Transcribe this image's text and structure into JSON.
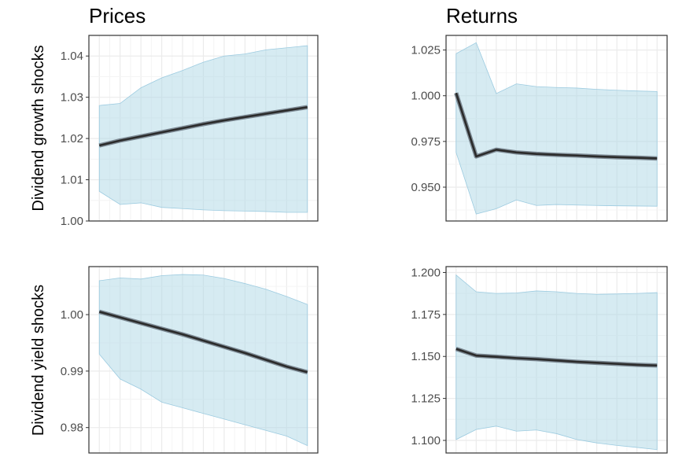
{
  "column_titles": [
    "Prices",
    "Returns"
  ],
  "row_titles": [
    "Dividend growth shocks",
    "Dividend yield shocks"
  ],
  "colors": {
    "band_fill": "#add8e6",
    "band_stroke": "#9ccbe0",
    "line": "#2b2b2b",
    "line_halo": "#7d8a94",
    "panel_border": "#333333",
    "grid_major": "#ebebeb",
    "grid_minor": "#f4f4f4",
    "tick_text": "#4d4d4d"
  },
  "chart_data": [
    {
      "type": "line",
      "panel": "prices-dividend-growth-shocks",
      "x": [
        1,
        2,
        3,
        4,
        5,
        6,
        7,
        8,
        9,
        10,
        11
      ],
      "y": [
        1.0183,
        1.0195,
        1.0205,
        1.0215,
        1.0225,
        1.0235,
        1.0244,
        1.0252,
        1.026,
        1.0268,
        1.0276
      ],
      "lower": [
        1.0072,
        1.004,
        1.0044,
        1.0033,
        1.003,
        1.0027,
        1.0025,
        1.0024,
        1.0023,
        1.0021,
        1.0021
      ],
      "upper": [
        1.028,
        1.0285,
        1.0323,
        1.0347,
        1.0365,
        1.0385,
        1.04,
        1.0405,
        1.0415,
        1.042,
        1.0425
      ],
      "ylim": [
        1.0,
        1.045
      ],
      "yticks": [
        1.0,
        1.01,
        1.02,
        1.03,
        1.04
      ],
      "ytick_labels": [
        "1.00",
        "1.01",
        "1.02",
        "1.03",
        "1.04"
      ]
    },
    {
      "type": "line",
      "panel": "returns-dividend-growth-shocks",
      "x": [
        1,
        2,
        3,
        4,
        5,
        6,
        7,
        8,
        9,
        10,
        11
      ],
      "y": [
        1.0015,
        0.9668,
        0.9705,
        0.969,
        0.9682,
        0.9677,
        0.9673,
        0.9668,
        0.9664,
        0.9661,
        0.9657
      ],
      "lower": [
        0.969,
        0.9353,
        0.9382,
        0.943,
        0.94,
        0.9405,
        0.9402,
        0.94,
        0.9398,
        0.9397,
        0.9396
      ],
      "upper": [
        1.023,
        1.029,
        1.0012,
        1.0065,
        1.005,
        1.0045,
        1.0042,
        1.0035,
        1.003,
        1.0026,
        1.0023
      ],
      "ylim": [
        0.9315,
        1.033
      ],
      "yticks": [
        0.95,
        0.975,
        1.0,
        1.025
      ],
      "ytick_labels": [
        "0.950",
        "0.975",
        "1.000",
        "1.025"
      ]
    },
    {
      "type": "line",
      "panel": "prices-dividend-yield-shocks",
      "x": [
        1,
        2,
        3,
        4,
        5,
        6,
        7,
        8,
        9,
        10,
        11
      ],
      "y": [
        1.0005,
        0.9995,
        0.9985,
        0.9975,
        0.9965,
        0.9954,
        0.9943,
        0.9932,
        0.992,
        0.9908,
        0.9898
      ],
      "lower": [
        0.993,
        0.9886,
        0.9868,
        0.9845,
        0.9835,
        0.9825,
        0.9815,
        0.9805,
        0.9795,
        0.9785,
        0.9768
      ],
      "upper": [
        1.006,
        1.0065,
        1.0063,
        1.0069,
        1.0071,
        1.007,
        1.0064,
        1.0055,
        1.0045,
        1.0032,
        1.0018
      ],
      "ylim": [
        0.9755,
        1.0085
      ],
      "yticks": [
        0.98,
        0.99,
        1.0
      ],
      "ytick_labels": [
        "0.98",
        "0.99",
        "1.00"
      ]
    },
    {
      "type": "line",
      "panel": "returns-dividend-yield-shocks",
      "x": [
        1,
        2,
        3,
        4,
        5,
        6,
        7,
        8,
        9,
        10,
        11
      ],
      "y": [
        1.1545,
        1.1505,
        1.1498,
        1.149,
        1.1484,
        1.1476,
        1.1468,
        1.1462,
        1.1456,
        1.145,
        1.1446
      ],
      "lower": [
        1.1005,
        1.1065,
        1.1085,
        1.1055,
        1.1062,
        1.104,
        1.1005,
        1.0985,
        1.097,
        1.0958,
        1.0945
      ],
      "upper": [
        1.1985,
        1.1885,
        1.1875,
        1.1878,
        1.189,
        1.1885,
        1.1875,
        1.187,
        1.1872,
        1.1875,
        1.188
      ],
      "ylim": [
        1.0925,
        1.2035
      ],
      "yticks": [
        1.1,
        1.125,
        1.15,
        1.175,
        1.2
      ],
      "ytick_labels": [
        "1.100",
        "1.125",
        "1.150",
        "1.175",
        "1.200"
      ]
    }
  ]
}
